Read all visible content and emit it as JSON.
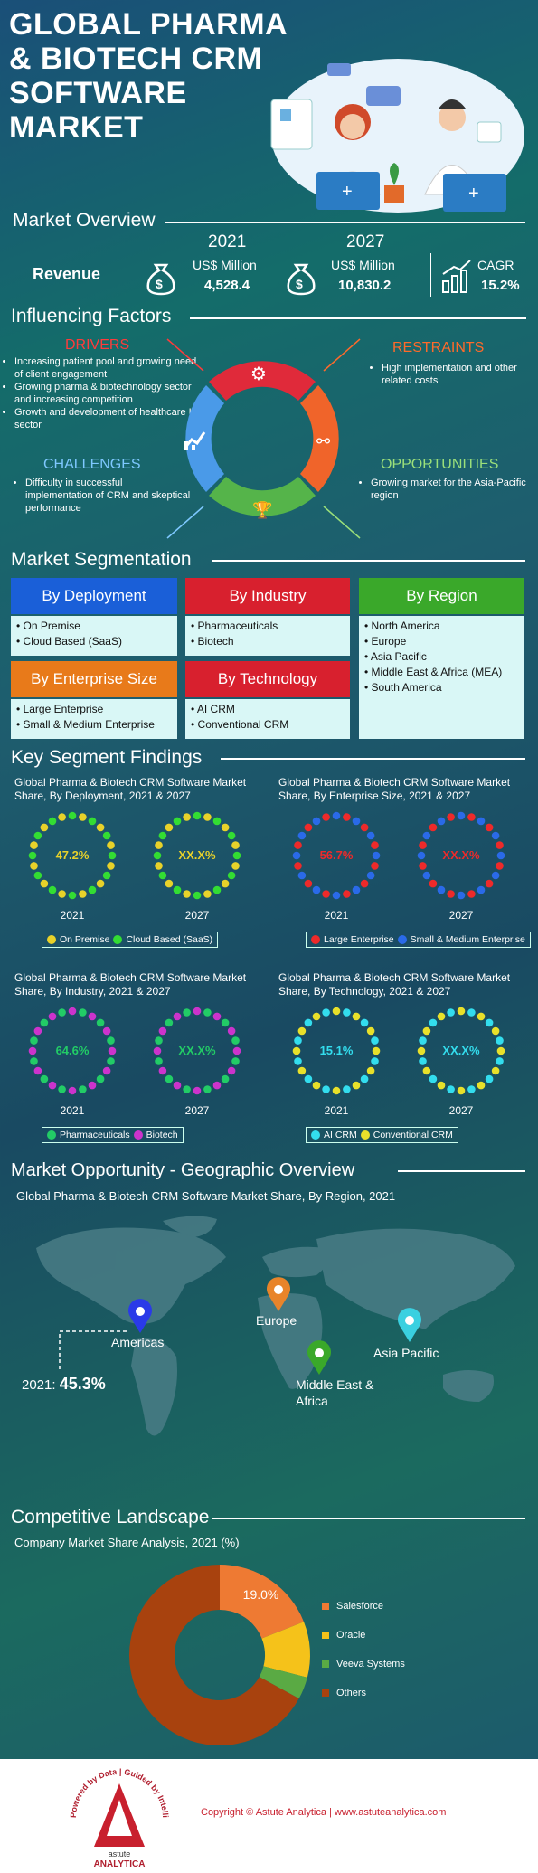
{
  "title_lines": [
    "GLOBAL PHARMA",
    "& BIOTECH CRM",
    "SOFTWARE",
    "MARKET"
  ],
  "overview": {
    "heading": "Market Overview",
    "revenue_label": "Revenue",
    "y1": "2021",
    "y1_unit": "US$ Million",
    "y1_value": "4,528.4",
    "y2": "2027",
    "y2_unit": "US$ Million",
    "y2_value": "10,830.2",
    "cagr_label": "CAGR",
    "cagr_value": "15.2%"
  },
  "factors": {
    "heading": "Influencing Factors",
    "drivers_title": "DRIVERS",
    "drivers": [
      "Increasing patient pool and growing need of client engagement",
      "Growing pharma & biotechnology sector and increasing competition",
      "Growth and development of healthcare IT sector"
    ],
    "restraints_title": "RESTRAINTS",
    "restraints": [
      "High implementation and other related costs"
    ],
    "challenges_title": "CHALLENGES",
    "challenges": [
      "Difficulty in successful implementation of CRM and skeptical performance"
    ],
    "opportunities_title": "OPPORTUNITIES",
    "opportunities": [
      "Growing market for the Asia-Pacific region"
    ]
  },
  "segmentation": {
    "heading": "Market Segmentation",
    "deployment": {
      "title": "By Deployment",
      "items": [
        "On Premise",
        "Cloud Based (SaaS)"
      ]
    },
    "industry": {
      "title": "By Industry",
      "items": [
        "Pharmaceuticals",
        "Biotech"
      ]
    },
    "region": {
      "title": "By Region",
      "items": [
        "North America",
        "Europe",
        "Asia Pacific",
        "Middle East & Africa (MEA)",
        "South America"
      ]
    },
    "enterprise": {
      "title": "By Enterprise Size",
      "items": [
        "Large Enterprise",
        "Small & Medium Enterprise"
      ]
    },
    "technology": {
      "title": "By Technology",
      "items": [
        "AI CRM",
        "Conventional CRM"
      ]
    }
  },
  "findings": {
    "heading": "Key Segment Findings",
    "panels": [
      {
        "title": "Global Pharma & Biotech CRM Software Market Share, By Deployment, 2021 & 2027",
        "v2021": "47.2%",
        "v2027": "XX.X%",
        "y1": "2021",
        "y2": "2027",
        "legend": [
          "On Premise",
          "Cloud Based (SaaS)"
        ],
        "c1": "#e8d22a",
        "c2": "#33dd33"
      },
      {
        "title": "Global Pharma & Biotech CRM Software Market Share, By Enterprise Size, 2021 & 2027",
        "v2021": "56.7%",
        "v2027": "XX.X%",
        "y1": "2021",
        "y2": "2027",
        "legend": [
          "Large Enterprise",
          "Small & Medium Enterprise"
        ],
        "c1": "#ee2a2a",
        "c2": "#2a6ae8"
      },
      {
        "title": "Global Pharma & Biotech CRM Software Market Share, By Industry, 2021 & 2027",
        "v2021": "64.6%",
        "v2027": "XX.X%",
        "y1": "2021",
        "y2": "2027",
        "legend": [
          "Pharmaceuticals",
          "Biotech"
        ],
        "c1": "#22cc66",
        "c2": "#cc33cc"
      },
      {
        "title": "Global Pharma & Biotech CRM Software Market Share, By Technology, 2021 & 2027",
        "v2021": "15.1%",
        "v2027": "XX.X%",
        "y1": "2021",
        "y2": "2027",
        "legend": [
          "AI CRM",
          "Conventional CRM"
        ],
        "c1": "#33ddee",
        "c2": "#e8e02a"
      }
    ]
  },
  "geo": {
    "heading": "Market Opportunity - Geographic Overview",
    "subtitle": "Global Pharma & Biotech CRM Software Market Share, By Region, 2021",
    "americas": "Americas",
    "europe": "Europe",
    "apac": "Asia Pacific",
    "mea": "Middle East & Africa",
    "share_label": "2021:",
    "share_value": "45.3%"
  },
  "competitive": {
    "heading": "Competitive Landscape",
    "subtitle": "Company Market Share Analysis, 2021 (%)",
    "callout": "19.0%"
  },
  "chart_data": {
    "type": "pie",
    "title": "Company Market Share Analysis, 2021 (%)",
    "categories": [
      "Salesforce",
      "Oracle",
      "Veeva Systems",
      "Others"
    ],
    "values": [
      19.0,
      10.0,
      4.0,
      67.0
    ],
    "colors": [
      "#ee7a33",
      "#f5c21a",
      "#5aaa44",
      "#a8420e"
    ],
    "data_labels": [
      "19.0%",
      "",
      "",
      ""
    ],
    "legend_position": "right"
  },
  "footer": {
    "copyright": "Copyright © Astute Analytica | www.astuteanalytica.com",
    "logo_ring": "Powered by Data | Guided by Intelligence",
    "logo_name1": "astute",
    "logo_name2": "ANALYTICA"
  }
}
